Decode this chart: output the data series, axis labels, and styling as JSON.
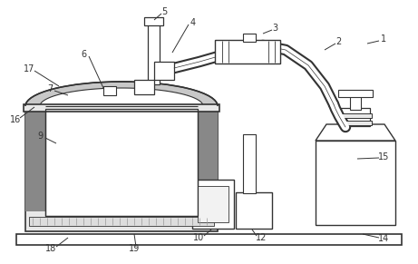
{
  "lc": "#333333",
  "gc": "#999999",
  "lgc": "#bbbbbb",
  "dgc": "#666666",
  "fill_gray": "#c8c8c8",
  "fill_light": "#e8e8e8",
  "fill_dark": "#888888"
}
